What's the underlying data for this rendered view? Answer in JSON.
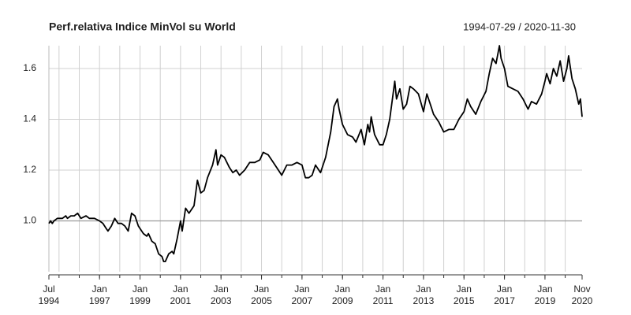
{
  "chart_data": {
    "type": "line",
    "title": "Perf.relativa Indice MinVol su World",
    "subtitle": "1994-07-29 / 2020-11-30",
    "color": "#000000",
    "grid": true,
    "baseline": 1,
    "xlim": [
      "1994-07",
      "2020-11"
    ],
    "ylim": [
      0.8,
      1.69
    ],
    "yticks": [
      {
        "value": 1,
        "label": "1.0"
      },
      {
        "value": 1.2,
        "label": "1.2"
      },
      {
        "value": 1.4,
        "label": "1.4"
      },
      {
        "value": 1.6,
        "label": "1.6"
      }
    ],
    "xticks": [
      {
        "value": "1994-07",
        "label": "Jul 1994"
      },
      {
        "value": "1997-01",
        "label": "Jan 1997"
      },
      {
        "value": "1999-01",
        "label": "Jan 1999"
      },
      {
        "value": "2001-01",
        "label": "Jan 2001"
      },
      {
        "value": "2003-01",
        "label": "Jan 2003"
      },
      {
        "value": "2005-01",
        "label": "Jan 2005"
      },
      {
        "value": "2007-01",
        "label": "Jan 2007"
      },
      {
        "value": "2009-01",
        "label": "Jan 2009"
      },
      {
        "value": "2011-01",
        "label": "Jan 2011"
      },
      {
        "value": "2013-01",
        "label": "Jan 2013"
      },
      {
        "value": "2015-01",
        "label": "Jan 2015"
      },
      {
        "value": "2017-01",
        "label": "Jan 2017"
      },
      {
        "value": "2019-01",
        "label": "Jan 2019"
      },
      {
        "value": "2020-11",
        "label": "Nov 2020"
      }
    ],
    "xgrid": [
      "1995-01",
      "1996-01",
      "1997-01",
      "1998-01",
      "1999-01",
      "2000-01",
      "2001-01",
      "2002-01",
      "2003-01",
      "2004-01",
      "2005-01",
      "2006-01",
      "2007-01",
      "2008-01",
      "2009-01",
      "2010-01",
      "2011-01",
      "2012-01",
      "2013-01",
      "2014-01",
      "2015-01",
      "2016-01",
      "2017-01",
      "2018-01",
      "2019-01",
      "2020-01"
    ],
    "x": [
      "1994-07",
      "1994-08",
      "1994-09",
      "1994-10",
      "1994-12",
      "1995-03",
      "1995-05",
      "1995-06",
      "1995-08",
      "1995-10",
      "1995-12",
      "1996-02",
      "1996-05",
      "1996-07",
      "1996-10",
      "1997-01",
      "1997-03",
      "1997-05",
      "1997-06",
      "1997-08",
      "1997-10",
      "1997-12",
      "1998-02",
      "1998-04",
      "1998-06",
      "1998-08",
      "1998-10",
      "1998-12",
      "1999-03",
      "1999-05",
      "1999-06",
      "1999-08",
      "1999-10",
      "1999-12",
      "2000-02",
      "2000-03",
      "2000-04",
      "2000-06",
      "2000-08",
      "2000-09",
      "2000-11",
      "2001-01",
      "2001-02",
      "2001-04",
      "2001-06",
      "2001-09",
      "2001-11",
      "2002-01",
      "2002-03",
      "2002-05",
      "2002-08",
      "2002-10",
      "2002-11",
      "2003-01",
      "2003-03",
      "2003-06",
      "2003-08",
      "2003-10",
      "2003-12",
      "2004-03",
      "2004-06",
      "2004-09",
      "2004-12",
      "2005-02",
      "2005-05",
      "2005-08",
      "2005-10",
      "2006-01",
      "2006-04",
      "2006-07",
      "2006-10",
      "2007-01",
      "2007-03",
      "2007-05",
      "2007-07",
      "2007-09",
      "2007-12",
      "2008-03",
      "2008-06",
      "2008-08",
      "2008-10",
      "2008-11",
      "2009-01",
      "2009-04",
      "2009-07",
      "2009-09",
      "2009-12",
      "2010-02",
      "2010-04",
      "2010-05",
      "2010-06",
      "2010-08",
      "2010-11",
      "2011-01",
      "2011-03",
      "2011-05",
      "2011-08",
      "2011-09",
      "2011-11",
      "2012-01",
      "2012-03",
      "2012-05",
      "2012-07",
      "2012-10",
      "2013-01",
      "2013-03",
      "2013-05",
      "2013-07",
      "2013-10",
      "2014-01",
      "2014-04",
      "2014-07",
      "2014-10",
      "2015-01",
      "2015-03",
      "2015-05",
      "2015-08",
      "2015-11",
      "2016-02",
      "2016-04",
      "2016-06",
      "2016-08",
      "2016-10",
      "2016-11",
      "2017-01",
      "2017-03",
      "2017-06",
      "2017-09",
      "2017-12",
      "2018-03",
      "2018-05",
      "2018-08",
      "2018-11",
      "2019-01",
      "2019-02",
      "2019-04",
      "2019-06",
      "2019-08",
      "2019-10",
      "2019-12",
      "2020-02",
      "2020-03",
      "2020-05",
      "2020-07",
      "2020-09",
      "2020-10",
      "2020-11"
    ],
    "values": [
      0.99,
      1.0,
      0.99,
      1.0,
      1.01,
      1.01,
      1.02,
      1.01,
      1.02,
      1.02,
      1.03,
      1.01,
      1.02,
      1.01,
      1.01,
      1.0,
      0.99,
      0.97,
      0.96,
      0.98,
      1.01,
      0.99,
      0.99,
      0.98,
      0.96,
      1.03,
      1.02,
      0.98,
      0.95,
      0.94,
      0.95,
      0.92,
      0.91,
      0.87,
      0.86,
      0.84,
      0.84,
      0.87,
      0.88,
      0.87,
      0.93,
      1.0,
      0.96,
      1.05,
      1.03,
      1.06,
      1.16,
      1.11,
      1.12,
      1.17,
      1.22,
      1.28,
      1.22,
      1.26,
      1.25,
      1.21,
      1.19,
      1.2,
      1.18,
      1.2,
      1.23,
      1.23,
      1.24,
      1.27,
      1.26,
      1.23,
      1.21,
      1.18,
      1.22,
      1.22,
      1.23,
      1.22,
      1.17,
      1.17,
      1.18,
      1.22,
      1.19,
      1.25,
      1.35,
      1.45,
      1.48,
      1.44,
      1.38,
      1.34,
      1.33,
      1.31,
      1.36,
      1.3,
      1.38,
      1.35,
      1.41,
      1.34,
      1.3,
      1.3,
      1.34,
      1.4,
      1.55,
      1.48,
      1.52,
      1.44,
      1.46,
      1.53,
      1.52,
      1.5,
      1.43,
      1.5,
      1.46,
      1.42,
      1.39,
      1.35,
      1.36,
      1.36,
      1.4,
      1.43,
      1.48,
      1.45,
      1.42,
      1.47,
      1.51,
      1.58,
      1.64,
      1.62,
      1.69,
      1.64,
      1.6,
      1.53,
      1.52,
      1.51,
      1.48,
      1.44,
      1.47,
      1.46,
      1.5,
      1.55,
      1.58,
      1.54,
      1.6,
      1.57,
      1.63,
      1.55,
      1.6,
      1.65,
      1.56,
      1.52,
      1.46,
      1.48,
      1.41
    ]
  }
}
